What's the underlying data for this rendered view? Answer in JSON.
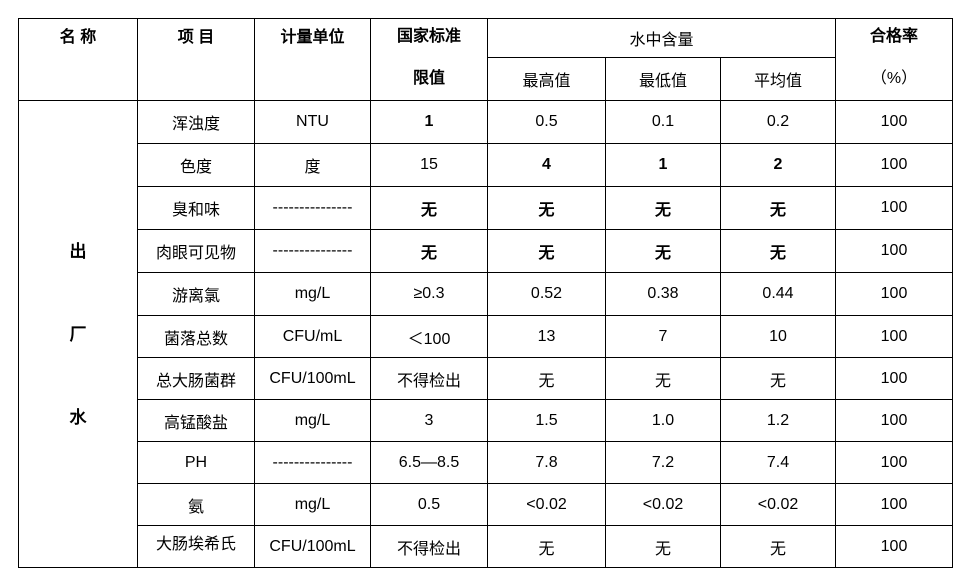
{
  "header": {
    "name": "名 称",
    "item": "项 目",
    "unit": "计量单位",
    "standard": [
      "国家标准",
      "限值"
    ],
    "content": "水中含量",
    "max": "最高值",
    "min": "最低值",
    "avg": "平均值",
    "rate": [
      "合格率",
      "（%）"
    ]
  },
  "group": [
    "出",
    "厂",
    "水"
  ],
  "rows": [
    [
      "浑浊度",
      "NTU",
      "1",
      "0.5",
      "0.1",
      "0.2",
      "100"
    ],
    [
      "色度",
      "度",
      "15",
      "4",
      "1",
      "2",
      "100"
    ],
    [
      "臭和味",
      "---------------",
      "无",
      "无",
      "无",
      "无",
      "100"
    ],
    [
      "肉眼可见物",
      "---------------",
      "无",
      "无",
      "无",
      "无",
      "100"
    ],
    [
      "游离氯",
      "mg/L",
      "≥0.3",
      "0.52",
      "0.38",
      "0.44",
      "100"
    ],
    [
      "菌落总数",
      "CFU/mL",
      "＜100",
      "13",
      "7",
      "10",
      "100"
    ],
    [
      "总大肠菌群",
      "CFU/100mL",
      "不得检出",
      "无",
      "无",
      "无",
      "100"
    ],
    [
      "高锰酸盐",
      "mg/L",
      "3",
      "1.5",
      "1.0",
      "1.2",
      "100"
    ],
    [
      "PH",
      "---------------",
      "6.5—8.5",
      "7.8",
      "7.2",
      "7.4",
      "100"
    ],
    [
      "氨",
      "mg/L",
      "0.5",
      "<0.02",
      "<0.02",
      "<0.02",
      "100"
    ],
    [
      "大肠埃希氏",
      "CFU/100mL",
      "不得检出",
      "无",
      "无",
      "无",
      "100"
    ]
  ]
}
